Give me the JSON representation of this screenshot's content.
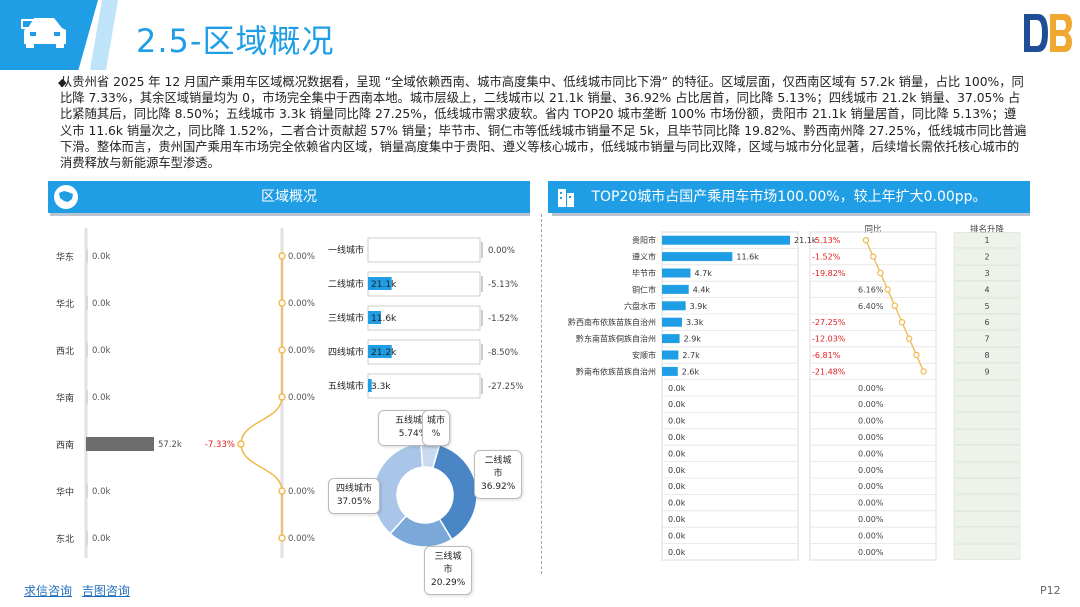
{
  "header": {
    "title": "2.5-区域概况"
  },
  "summary": "从贵州省 2025 年 12 月国产乘用车区域概况数据看，呈现 “全域依赖西南、城市高度集中、低线城市同比下滑” 的特征。区域层面，仅西南区域有 57.2k 销量，占比 100%，同比降 7.33%，其余区域销量均为 0，市场完全集中于西南本地。城市层级上，二线城市以 21.1k 销量、36.92% 占比居首，同比降 5.13%；四线城市 21.2k 销量、37.05% 占比紧随其后，同比降 8.50%；五线城市 3.3k 销量同比降 27.25%，低线城市需求疲软。省内 TOP20 城市垄断 100% 市场份额，贵阳市 21.1k 销量居首，同比降 5.13%；遵义市 11.6k 销量次之，同比降 1.52%，二者合计贡献超 57% 销量；毕节市、铜仁市等低线城市销量不足 5k，且毕节同比降 19.82%、黔西南州降 27.25%，低线城市同比普遍下滑。整体而言，贵州国产乘用车市场完全依赖省内区域，销量高度集中于贵阳、遵义等核心城市，低线城市销量与同比双降，区域与城市分化显著，后续增长需依托核心城市的消费释放与新能源车型渗透。",
  "left_section": {
    "title": "区域概况"
  },
  "right_section": {
    "title": "TOP20城市占国产乘用车市场100.00%，较上年扩大0.00pp。"
  },
  "footer": {
    "link1": "求信咨询",
    "link2": "吉图咨询",
    "page": "P12"
  },
  "colors": {
    "accent": "#1f9ee6",
    "bar_gray": "#6d6d6d",
    "line": "#f0b84d",
    "negative": "#e02020"
  },
  "chart_data": [
    {
      "type": "bar",
      "categories": [
        "华东",
        "华北",
        "西北",
        "华南",
        "西南",
        "华中",
        "东北"
      ],
      "series": [
        {
          "values": [
            0.0,
            0.0,
            0.0,
            0.0,
            57.2,
            0.0,
            0.0
          ],
          "labels": [
            "0.0k",
            "0.0k",
            "0.0k",
            "0.0k",
            "57.2k",
            "0.0k",
            "0.0k"
          ]
        }
      ],
      "xlim": [
        0,
        57.2
      ]
    },
    {
      "type": "line",
      "categories": [
        "华东",
        "华北",
        "西北",
        "华南",
        "西南",
        "华中",
        "东北"
      ],
      "values": [
        0.0,
        0.0,
        0.0,
        0.0,
        -7.33,
        0.0,
        0.0
      ],
      "labels": [
        "0.00%",
        "0.00%",
        "0.00%",
        "0.00%",
        "-7.33%",
        "0.00%",
        "0.00%"
      ]
    },
    {
      "type": "bar",
      "categories": [
        "一线城市",
        "二线城市",
        "三线城市",
        "四线城市",
        "五线城市"
      ],
      "values": [
        0.0,
        21.1,
        11.6,
        21.2,
        3.3
      ],
      "labels": [
        "",
        "21.1k",
        "11.6k",
        "21.2k",
        "3.3k"
      ],
      "growth": [
        "0.00%",
        "-5.13%",
        "-1.52%",
        "-8.50%",
        "-27.25%"
      ],
      "xlim": [
        0,
        100
      ]
    },
    {
      "type": "pie",
      "categories": [
        "二线城市",
        "三线城市",
        "四线城市",
        "五线城市",
        "一线城市"
      ],
      "values": [
        36.92,
        20.29,
        37.05,
        5.74,
        0.0
      ],
      "labels": [
        "36.92%",
        "20.29%",
        "37.05%",
        "5.74%",
        "%"
      ],
      "colors": [
        "#4a86c6",
        "#7aa8d8",
        "#a9c6e8",
        "#c8daef",
        "#e3edf8"
      ]
    },
    {
      "type": "bar",
      "categories": [
        "贵阳市",
        "遵义市",
        "毕节市",
        "铜仁市",
        "六盘水市",
        "黔西南布依族苗族自治州",
        "黔东南苗族侗族自治州",
        "安顺市",
        "黔南布依族苗族自治州",
        "",
        "",
        "",
        "",
        "",
        "",
        "",
        "",
        "",
        "",
        ""
      ],
      "values": [
        21.1,
        11.6,
        4.7,
        4.4,
        3.9,
        3.3,
        2.9,
        2.7,
        2.6,
        0,
        0,
        0,
        0,
        0,
        0,
        0,
        0,
        0,
        0,
        0
      ],
      "labels": [
        "21.1k",
        "11.6k",
        "4.7k",
        "4.4k",
        "3.9k",
        "3.3k",
        "2.9k",
        "2.7k",
        "2.6k",
        "0.0k",
        "0.0k",
        "0.0k",
        "0.0k",
        "0.0k",
        "0.0k",
        "0.0k",
        "0.0k",
        "0.0k",
        "0.0k",
        "0.0k"
      ],
      "growth": [
        "-5.13%",
        "-1.52%",
        "-19.82%",
        "6.16%",
        "6.40%",
        "-27.25%",
        "-12.03%",
        "-6.81%",
        "-21.48%",
        "0.00%",
        "0.00%",
        "0.00%",
        "0.00%",
        "0.00%",
        "0.00%",
        "0.00%",
        "0.00%",
        "0.00%",
        "0.00%",
        "0.00%"
      ],
      "growth_header": "同比",
      "rank_header": "排名升降",
      "ranks": [
        "1",
        "2",
        "3",
        "4",
        "5",
        "6",
        "7",
        "8",
        "9"
      ],
      "xlim": [
        0,
        21.1
      ]
    }
  ]
}
